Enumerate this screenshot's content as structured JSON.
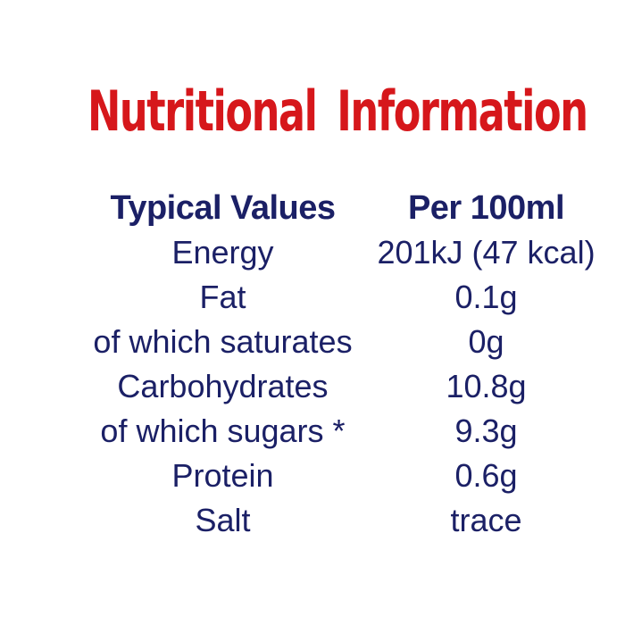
{
  "title": "Nutritional Information",
  "colors": {
    "title_red": "#d6171b",
    "text_navy": "#1b2066",
    "background": "#ffffff"
  },
  "table": {
    "headers": {
      "label": "Typical Values",
      "value": "Per 100ml"
    },
    "rows": [
      {
        "label": "Energy",
        "value": "201kJ (47 kcal)"
      },
      {
        "label": "Fat",
        "value": "0.1g"
      },
      {
        "label": "of which saturates",
        "value": "0g"
      },
      {
        "label": "Carbohydrates",
        "value": "10.8g"
      },
      {
        "label": "of which sugars *",
        "value": "9.3g"
      },
      {
        "label": "Protein",
        "value": "0.6g"
      },
      {
        "label": "Salt",
        "value": "trace"
      }
    ]
  }
}
